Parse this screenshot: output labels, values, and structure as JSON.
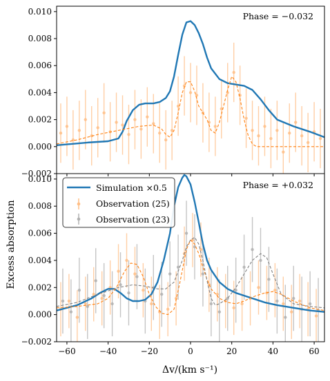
{
  "chart_data": [
    {
      "type": "line",
      "panel": "top",
      "annotation": "Phase = −0.032",
      "xlim": [
        -65,
        65
      ],
      "ylim": [
        -0.002,
        0.0104
      ],
      "yticks": [
        "0.010",
        "0.008",
        "0.006",
        "0.004",
        "0.002",
        "0.000",
        "−0.002"
      ],
      "ytick_values": [
        0.01,
        0.008,
        0.006,
        0.004,
        0.002,
        0.0,
        -0.002
      ],
      "series": [
        {
          "style": "solid-blue",
          "x": [
            -65,
            -50,
            -40,
            -35,
            -33,
            -31,
            -28,
            -25,
            -22,
            -18,
            -15,
            -12,
            -10,
            -8,
            -6,
            -4,
            -2,
            0,
            2,
            4,
            6,
            8,
            10,
            14,
            18,
            22,
            26,
            30,
            34,
            38,
            42,
            50,
            58,
            65
          ],
          "y": [
            0.0001,
            0.0003,
            0.0004,
            0.0006,
            0.0011,
            0.0019,
            0.0027,
            0.0031,
            0.0032,
            0.0032,
            0.0033,
            0.0036,
            0.0041,
            0.0052,
            0.0068,
            0.0083,
            0.0092,
            0.0093,
            0.009,
            0.0084,
            0.0076,
            0.0066,
            0.0058,
            0.005,
            0.0047,
            0.0046,
            0.0045,
            0.0042,
            0.0035,
            0.0027,
            0.002,
            0.0015,
            0.0011,
            0.0007
          ]
        },
        {
          "style": "dashed-orange",
          "x": [
            -65,
            -55,
            -45,
            -35,
            -25,
            -18,
            -14,
            -12,
            -10,
            -8,
            -6,
            -4,
            -2,
            0,
            2,
            4,
            6,
            8,
            10,
            12,
            14,
            16,
            18,
            20,
            22,
            24,
            26,
            28,
            30,
            32,
            36,
            42,
            50,
            65
          ],
          "y": [
            0.0002,
            0.0005,
            0.0009,
            0.0012,
            0.0015,
            0.0016,
            0.0013,
            0.0009,
            0.0007,
            0.0012,
            0.0025,
            0.004,
            0.0048,
            0.0048,
            0.0041,
            0.003,
            0.0025,
            0.002,
            0.0012,
            0.001,
            0.0018,
            0.003,
            0.0042,
            0.0052,
            0.0048,
            0.0036,
            0.002,
            0.0008,
            0.0002,
            0.0,
            0.0,
            0.0,
            0.0,
            0.0
          ]
        }
      ],
      "observations": {
        "color": "#ffbe86",
        "x": [
          -63,
          -60,
          -57,
          -54,
          -51,
          -48,
          -45,
          -42,
          -39,
          -36,
          -33,
          -30,
          -27,
          -24,
          -21,
          -18,
          -15,
          -12,
          -9,
          -6,
          -3,
          0,
          3,
          6,
          9,
          12,
          15,
          18,
          21,
          24,
          27,
          30,
          33,
          36,
          39,
          42,
          45,
          48,
          51,
          54,
          57,
          60,
          63
        ],
        "y": [
          0.001,
          0.0015,
          0.0005,
          0.0012,
          0.002,
          0.0008,
          0.0014,
          0.0025,
          0.0011,
          0.0018,
          0.0016,
          0.0009,
          0.002,
          0.0013,
          0.0022,
          0.0017,
          0.001,
          0.0005,
          0.0012,
          0.003,
          0.0045,
          0.004,
          0.0038,
          0.0025,
          0.0018,
          0.0015,
          0.0028,
          0.004,
          0.0055,
          0.0038,
          0.0021,
          0.0012,
          0.0008,
          0.0015,
          0.0006,
          0.0012,
          -0.0004,
          0.001,
          0.0018,
          0.0008,
          0.0003,
          0.0011,
          0.0006
        ],
        "err": 0.0022
      }
    },
    {
      "type": "line",
      "panel": "bottom",
      "annotation": "Phase = +0.032",
      "xlim": [
        -65,
        65
      ],
      "ylim": [
        -0.002,
        0.0104
      ],
      "yticks": [
        "0.010",
        "0.008",
        "0.006",
        "0.004",
        "0.002",
        "0.000",
        "−0.002"
      ],
      "ytick_values": [
        0.01,
        0.008,
        0.006,
        0.004,
        0.002,
        0.0,
        -0.002
      ],
      "xticks": [
        "−60",
        "−40",
        "−20",
        "0",
        "20",
        "40",
        "60"
      ],
      "xtick_values": [
        -60,
        -40,
        -20,
        0,
        20,
        40,
        60
      ],
      "xlabel": "Δv/(km s⁻¹)",
      "ylabel": "Excess absorption",
      "legend": {
        "position": "upper-left",
        "entries": [
          {
            "label": "Simulation ×0.5",
            "style": "solid-blue"
          },
          {
            "label": "Observation (25)",
            "style": "errorbar-orange"
          },
          {
            "label": "Observation (23)",
            "style": "errorbar-gray"
          }
        ]
      },
      "series": [
        {
          "style": "solid-blue",
          "x": [
            -65,
            -55,
            -48,
            -44,
            -40,
            -37,
            -34,
            -31,
            -28,
            -25,
            -22,
            -19,
            -16,
            -13,
            -10,
            -8,
            -6,
            -4,
            -3,
            -2,
            0,
            2,
            4,
            6,
            8,
            10,
            14,
            18,
            22,
            26,
            30,
            36,
            42,
            50,
            58,
            65
          ],
          "y": [
            0.0003,
            0.0007,
            0.0012,
            0.0016,
            0.0019,
            0.0019,
            0.0016,
            0.0012,
            0.001,
            0.001,
            0.0011,
            0.0015,
            0.0024,
            0.004,
            0.006,
            0.008,
            0.0094,
            0.0101,
            0.0103,
            0.0102,
            0.0096,
            0.0083,
            0.0068,
            0.0052,
            0.004,
            0.0033,
            0.0024,
            0.0019,
            0.0016,
            0.0014,
            0.0012,
            0.0009,
            0.0007,
            0.0005,
            0.0003,
            0.0002
          ]
        },
        {
          "style": "dashed-orange",
          "x": [
            -65,
            -55,
            -45,
            -40,
            -36,
            -32,
            -29,
            -26,
            -23,
            -20,
            -17,
            -14,
            -11,
            -8,
            -5,
            -2,
            0,
            2,
            4,
            6,
            8,
            10,
            14,
            18,
            22,
            26,
            30,
            36,
            40,
            44,
            50,
            58,
            65
          ],
          "y": [
            0.0005,
            0.0006,
            0.0008,
            0.0012,
            0.002,
            0.0032,
            0.0038,
            0.0037,
            0.0028,
            0.0015,
            0.0006,
            0.0001,
            0.0,
            0.0004,
            0.0025,
            0.0048,
            0.0055,
            0.0052,
            0.0045,
            0.0035,
            0.0026,
            0.0019,
            0.0012,
            0.0009,
            0.0008,
            0.001,
            0.0013,
            0.0016,
            0.0017,
            0.0015,
            0.001,
            0.0005,
            0.0003
          ]
        },
        {
          "style": "dashed-gray",
          "x": [
            -65,
            -55,
            -45,
            -35,
            -28,
            -22,
            -16,
            -12,
            -8,
            -4,
            -2,
            0,
            2,
            4,
            6,
            8,
            10,
            12,
            14,
            18,
            22,
            26,
            30,
            34,
            37,
            40,
            44,
            50,
            58,
            65
          ],
          "y": [
            0.0006,
            0.0009,
            0.0015,
            0.002,
            0.0022,
            0.0021,
            0.0019,
            0.0019,
            0.0024,
            0.004,
            0.005,
            0.0055,
            0.0057,
            0.0052,
            0.004,
            0.0025,
            0.0012,
            0.0007,
            0.0008,
            0.0012,
            0.002,
            0.003,
            0.004,
            0.0045,
            0.0042,
            0.003,
            0.0015,
            0.0008,
            0.0006,
            0.0005
          ]
        }
      ],
      "observations_orange": {
        "color": "#ffbe86",
        "x": [
          -63,
          -59,
          -55,
          -51,
          -47,
          -43,
          -39,
          -35,
          -31,
          -27,
          -23,
          -19,
          -15,
          -11,
          -7,
          -3,
          1,
          5,
          9,
          13,
          17,
          21,
          25,
          29,
          33,
          37,
          41,
          45,
          49,
          53,
          57,
          61
        ],
        "y": [
          0.0004,
          0.001,
          -0.0002,
          0.0008,
          0.0015,
          0.0012,
          0.002,
          0.0032,
          0.004,
          0.003,
          0.0018,
          0.0008,
          0.0002,
          0.0004,
          0.0012,
          0.0045,
          0.0055,
          0.0048,
          0.0022,
          0.0015,
          0.001,
          0.0005,
          0.0008,
          0.0012,
          0.002,
          0.0016,
          0.0018,
          0.0008,
          0.0002,
          0.001,
          0.0004,
          -0.0001
        ],
        "err": 0.002
      },
      "observations_gray": {
        "color": "#b0b0b0",
        "x": [
          -62,
          -58,
          -54,
          -50,
          -46,
          -42,
          -38,
          -34,
          -30,
          -26,
          -22,
          -18,
          -14,
          -10,
          -6,
          -2,
          2,
          6,
          10,
          14,
          18,
          22,
          26,
          30,
          34,
          38,
          42,
          46,
          50,
          54,
          58,
          62
        ],
        "y": [
          0.001,
          0.0002,
          0.0018,
          0.0006,
          0.0025,
          0.0014,
          0.0008,
          0.0022,
          0.0016,
          0.0028,
          0.001,
          0.002,
          0.0015,
          0.003,
          0.0035,
          0.006,
          0.005,
          0.003,
          0.0008,
          0.0002,
          0.0012,
          0.0018,
          0.0035,
          0.0048,
          0.004,
          0.0026,
          0.001,
          -0.0002,
          0.0012,
          0.0004,
          0.0008,
          0.0003
        ],
        "err": 0.0024
      }
    }
  ],
  "colors": {
    "blue": "#1f77b4",
    "orange": "#ff7f0e",
    "orange_light": "#ffbe86",
    "gray": "#7f7f7f",
    "gray_light": "#b0b0b0"
  }
}
